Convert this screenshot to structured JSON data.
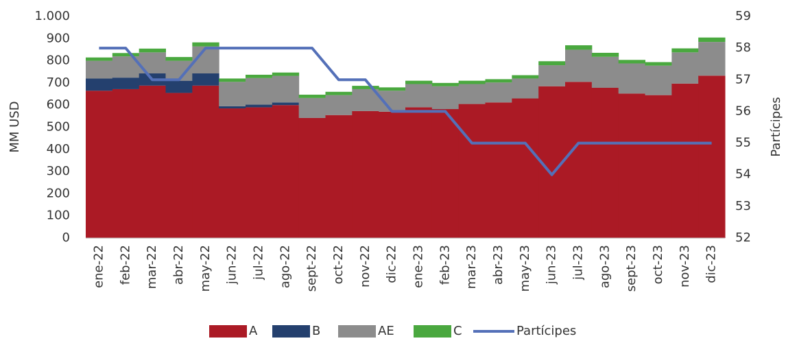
{
  "chart_data": {
    "type": "bar",
    "stacked": true,
    "y_label": "MM USD",
    "y2_label": "Partícipes",
    "categories": [
      "ene-22",
      "feb-22",
      "mar-22",
      "abr-22",
      "may-22",
      "jun-22",
      "jul-22",
      "ago-22",
      "sept-22",
      "oct-22",
      "nov-22",
      "dic-22",
      "ene-23",
      "feb-23",
      "mar-23",
      "abr-23",
      "may-23",
      "jun-23",
      "jul-23",
      "ago-23",
      "sept-23",
      "oct-23",
      "nov-23",
      "dic-23"
    ],
    "series": [
      {
        "name": "A",
        "color": "#ab1a25",
        "values": [
          665,
          672,
          688,
          655,
          688,
          585,
          590,
          600,
          542,
          555,
          573,
          570,
          590,
          582,
          605,
          612,
          630,
          685,
          705,
          678,
          652,
          645,
          697,
          733
        ]
      },
      {
        "name": "B",
        "color": "#24406e",
        "values": [
          55,
          52,
          55,
          55,
          55,
          10,
          12,
          12,
          0,
          0,
          0,
          0,
          0,
          0,
          0,
          0,
          0,
          0,
          0,
          0,
          0,
          0,
          0,
          0
        ]
      },
      {
        "name": "AE",
        "color": "#8c8c8c",
        "values": [
          80,
          96,
          95,
          90,
          122,
          110,
          120,
          120,
          90,
          90,
          99,
          95,
          105,
          103,
          90,
          90,
          90,
          95,
          145,
          140,
          136,
          133,
          141,
          152
        ]
      },
      {
        "name": "C",
        "color": "#4aa83f",
        "values": [
          15,
          15,
          17,
          17,
          18,
          15,
          15,
          15,
          15,
          15,
          15,
          15,
          15,
          15,
          15,
          15,
          15,
          18,
          20,
          18,
          16,
          16,
          18,
          20
        ]
      },
      {
        "name": "Partícipes",
        "color": "#5470b8",
        "type": "line",
        "axis": "y2",
        "values": [
          58,
          58,
          57,
          57,
          58,
          58,
          58,
          58,
          58,
          57,
          57,
          56,
          56,
          56,
          55,
          55,
          55,
          54,
          55,
          55,
          55,
          55,
          55,
          55
        ]
      }
    ],
    "ylim": [
      0,
      1000
    ],
    "yticks": [
      0,
      100,
      200,
      300,
      400,
      500,
      600,
      700,
      800,
      900,
      {
        "value": 1000,
        "label": "1.000"
      }
    ],
    "y2lim": [
      52,
      59
    ],
    "y2ticks": [
      52,
      53,
      54,
      55,
      56,
      57,
      58,
      59
    ]
  }
}
